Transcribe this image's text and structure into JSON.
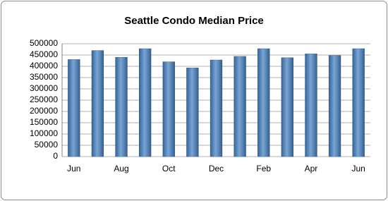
{
  "chart_data": {
    "type": "bar",
    "title": "Seattle Condo Median Price",
    "categories": [
      "Jun",
      null,
      "Aug",
      null,
      "Oct",
      null,
      "Dec",
      null,
      "Feb",
      null,
      "Apr",
      null,
      "Jun"
    ],
    "values": [
      430000,
      470000,
      440000,
      478000,
      420000,
      393000,
      428000,
      444000,
      478000,
      438000,
      455000,
      448000,
      478000
    ],
    "color": "#4a86c8",
    "ylim": [
      0,
      500000
    ],
    "yticks": [
      0,
      50000,
      100000,
      150000,
      200000,
      250000,
      300000,
      350000,
      400000,
      450000,
      500000
    ],
    "grid": true
  }
}
